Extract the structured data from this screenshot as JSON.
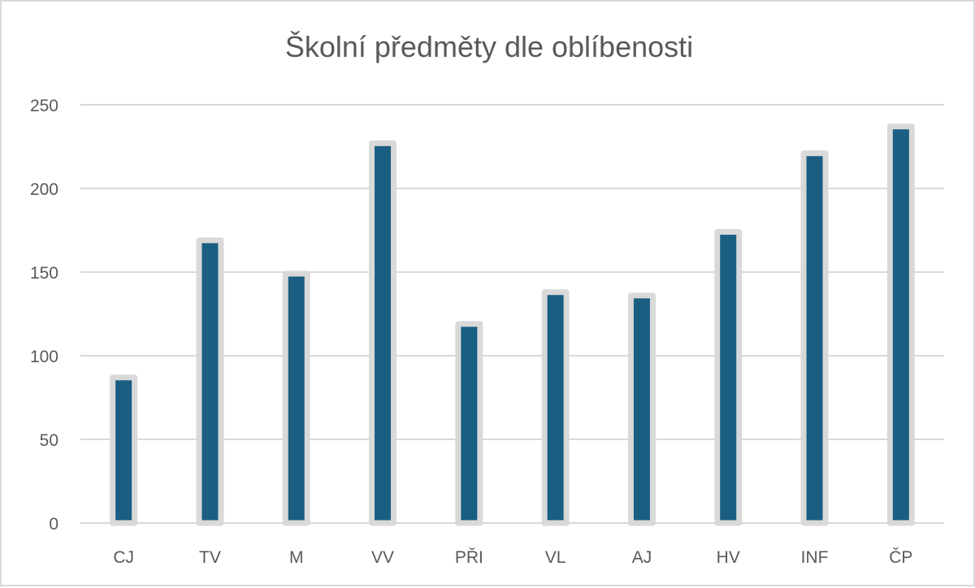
{
  "chart_data": {
    "type": "bar",
    "title": "Školní předměty dle oblíbenosti",
    "xlabel": "",
    "ylabel": "",
    "categories": [
      "CJ",
      "TV",
      "M",
      "VV",
      "PŘI",
      "VL",
      "AJ",
      "HV",
      "INF",
      "ČP"
    ],
    "values": [
      87,
      169,
      149,
      227,
      119,
      138,
      136,
      174,
      221,
      237
    ],
    "ylim": [
      0,
      250
    ],
    "yticks": [
      0,
      50,
      100,
      150,
      200,
      250
    ],
    "grid": true,
    "legend": "none",
    "colors": {
      "bar": "#1a5e82",
      "bar_border": "#d9d9d9",
      "grid": "#d9d9d9",
      "text": "#595959"
    }
  }
}
